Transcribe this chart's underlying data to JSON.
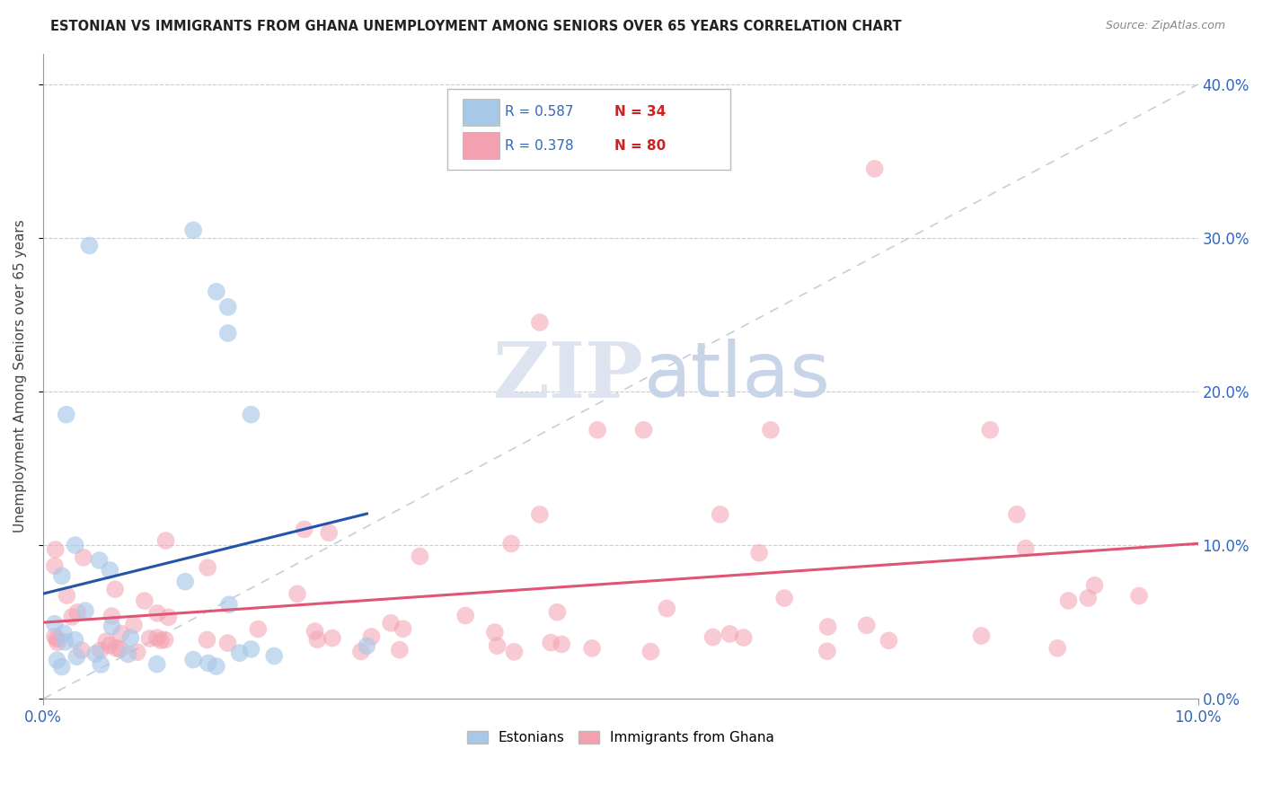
{
  "title": "ESTONIAN VS IMMIGRANTS FROM GHANA UNEMPLOYMENT AMONG SENIORS OVER 65 YEARS CORRELATION CHART",
  "source": "Source: ZipAtlas.com",
  "ylabel": "Unemployment Among Seniors over 65 years",
  "color_estonian": "#a8c8e8",
  "color_ghana": "#f4a0b0",
  "color_line_estonian": "#2255aa",
  "color_line_ghana": "#e05575",
  "color_diagonal": "#c0c8d8",
  "xlim": [
    0.0,
    0.1
  ],
  "ylim": [
    0.0,
    0.42
  ],
  "yticks": [
    0.0,
    0.1,
    0.2,
    0.3,
    0.4
  ],
  "ytick_labels": [
    "0.0%",
    "10.0%",
    "20.0%",
    "30.0%",
    "40.0%"
  ],
  "xtick_labels": [
    "0.0%",
    "10.0%"
  ],
  "est_seed": 42,
  "gha_seed": 77
}
